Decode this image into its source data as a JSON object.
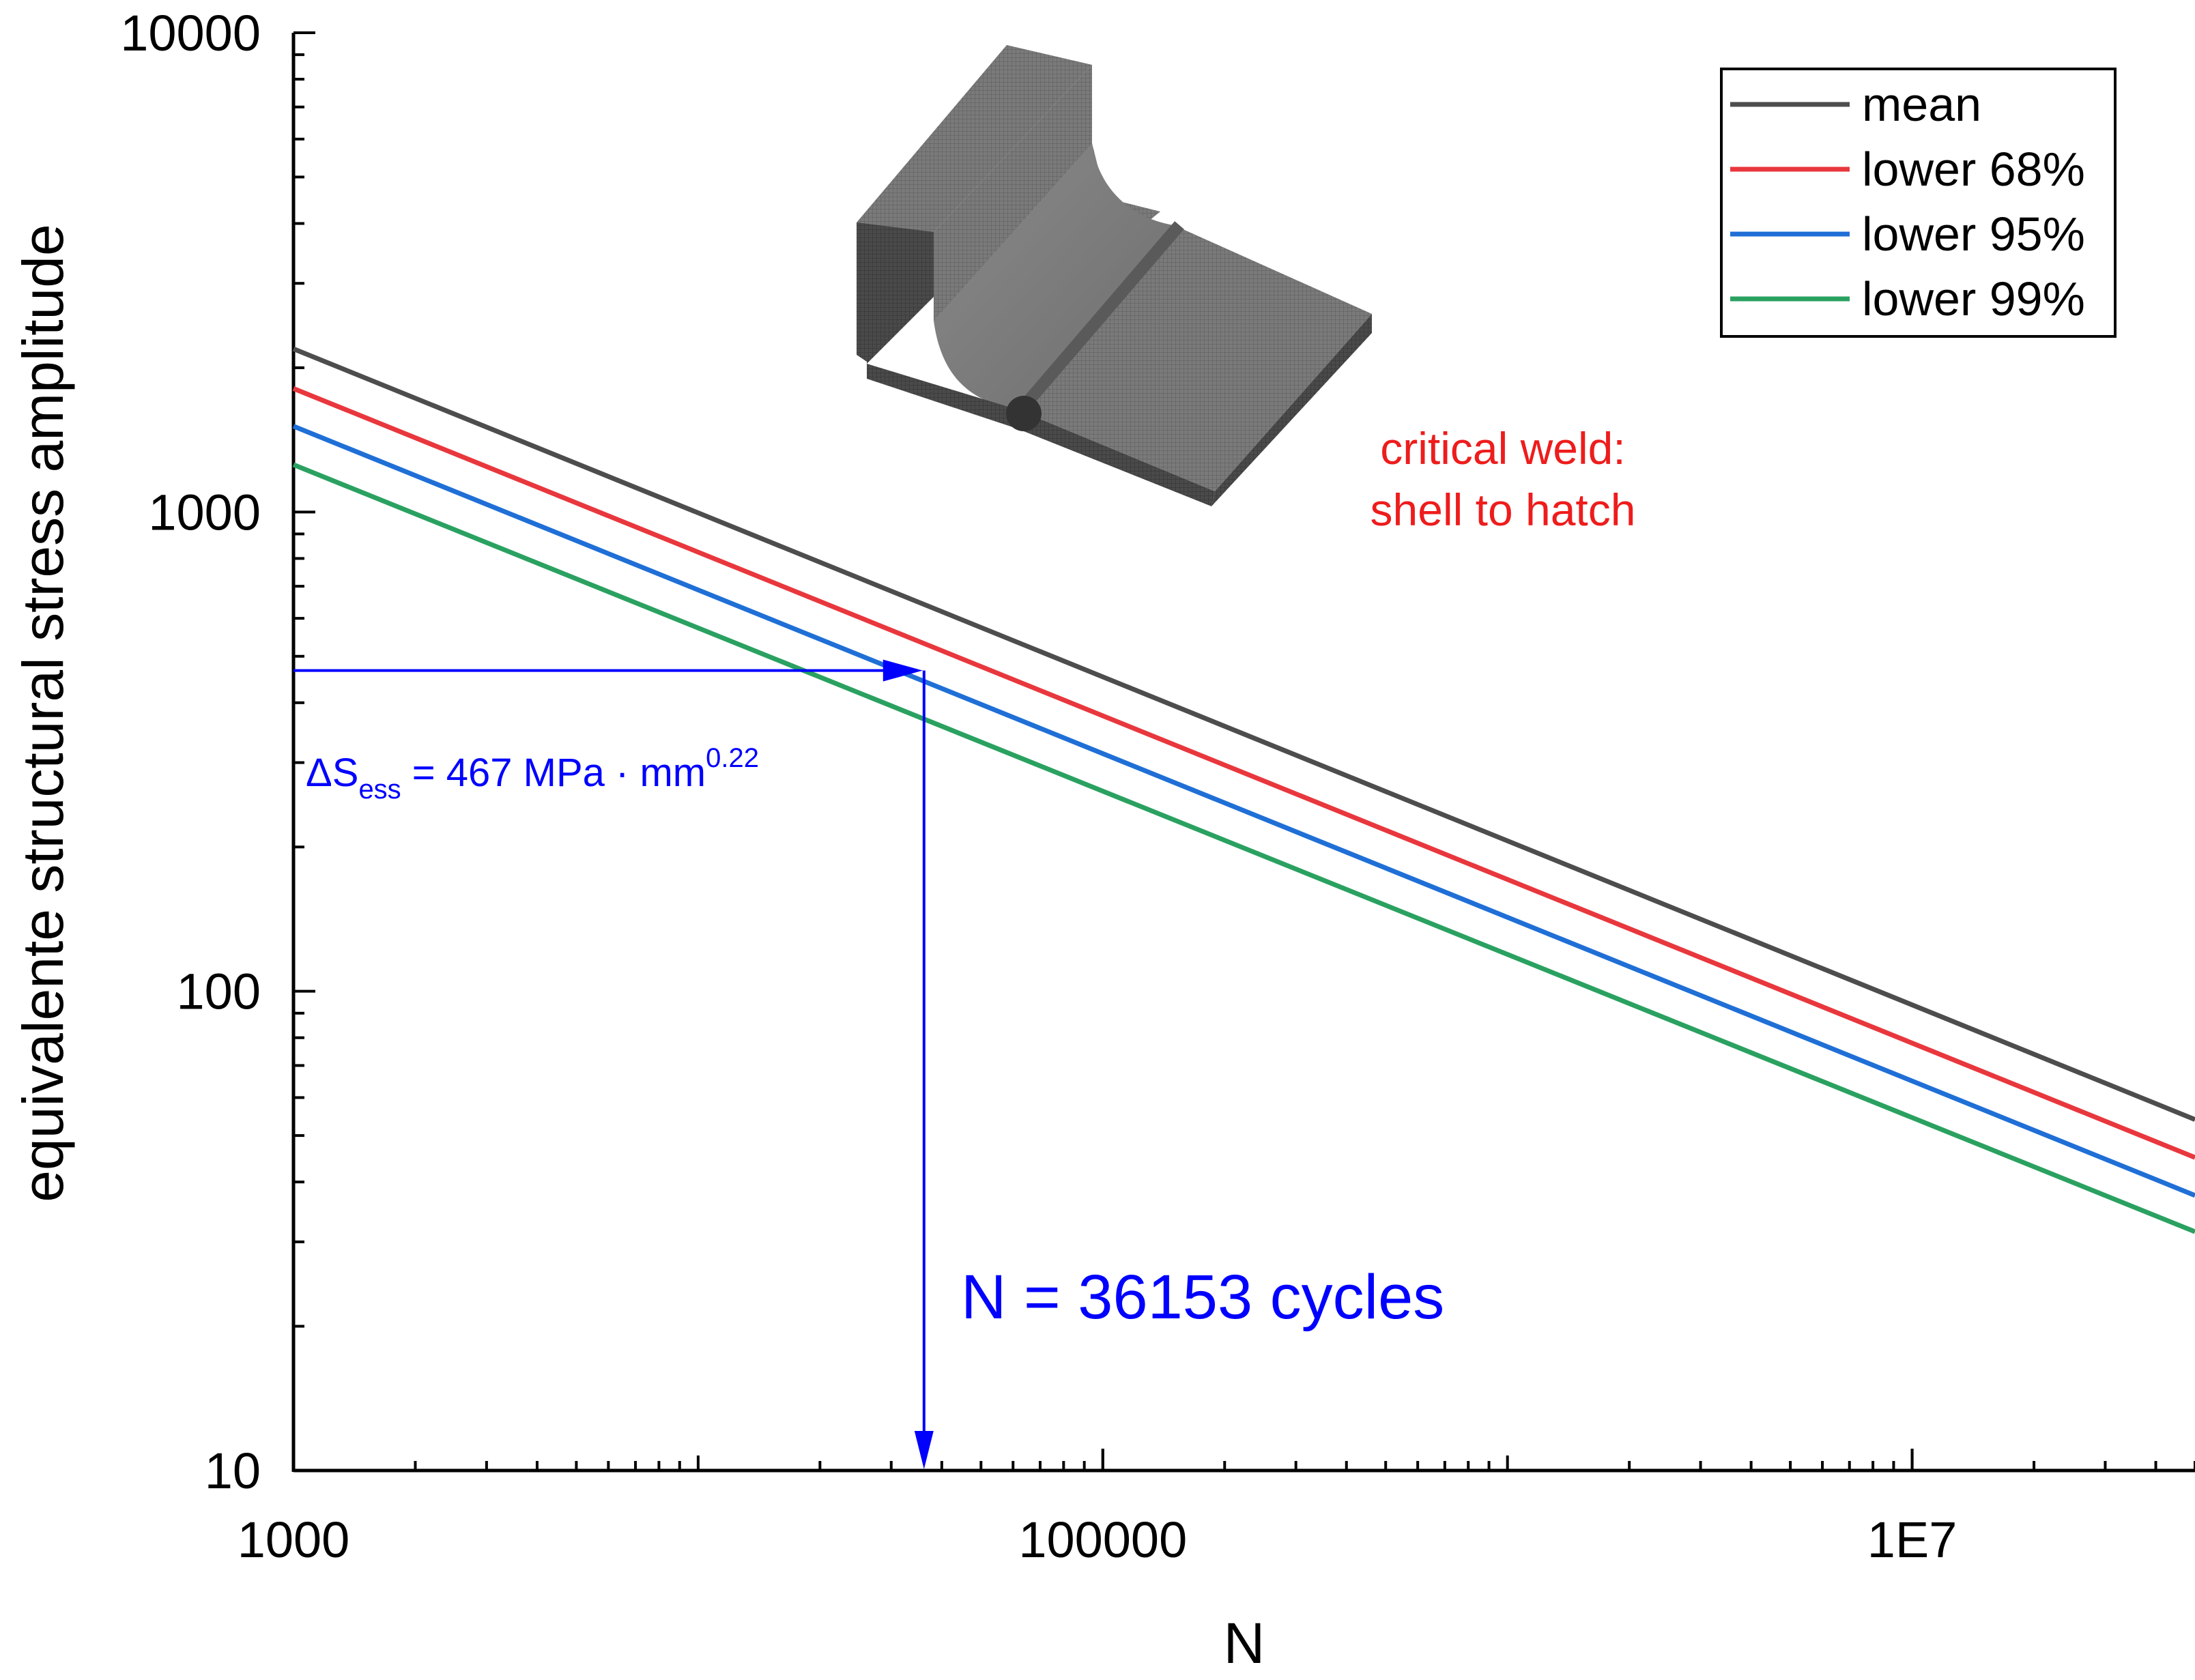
{
  "chart_data": {
    "type": "line",
    "xlabel": "N",
    "ylabel": "equivalente structural stress amplitude",
    "x_scale": "log",
    "y_scale": "log",
    "xlim": [
      1000,
      50000000
    ],
    "ylim": [
      10,
      10000
    ],
    "x_ticks": [
      {
        "value": 1000,
        "label": "1000"
      },
      {
        "value": 100000,
        "label": "100000"
      },
      {
        "value": 10000000,
        "label": "1E7"
      }
    ],
    "y_ticks": [
      {
        "value": 10,
        "label": "10"
      },
      {
        "value": 100,
        "label": "100"
      },
      {
        "value": 1000,
        "label": "1000"
      },
      {
        "value": 10000,
        "label": "10000"
      }
    ],
    "grid": false,
    "legend_position": "top-right",
    "series": [
      {
        "name": "mean",
        "color": "#4d4d4d",
        "x": [
          1000,
          50000000
        ],
        "y": [
          2190,
          54
        ]
      },
      {
        "name": "lower 68%",
        "color": "#e8373d",
        "x": [
          1000,
          50000000
        ],
        "y": [
          1810,
          45
        ]
      },
      {
        "name": "lower 95%",
        "color": "#1f6fd6",
        "x": [
          1000,
          50000000
        ],
        "y": [
          1510,
          37.5
        ]
      },
      {
        "name": "lower 99%",
        "color": "#2aa160",
        "x": [
          1000,
          50000000
        ],
        "y": [
          1255,
          31.5
        ]
      }
    ],
    "annotations": {
      "stress_line_y": 467,
      "cycles_line_x": 36153,
      "stress_prefix": "ΔS",
      "stress_sub": "ess",
      "stress_mid": " = 467 MPa · mm",
      "stress_sup": "0.22",
      "cycles_text": "N = 36153 cycles",
      "weld_line1": "critical weld:",
      "weld_line2": "shell to hatch",
      "annotation_color": "#0000ff",
      "weld_color": "#ee1c1c"
    }
  }
}
